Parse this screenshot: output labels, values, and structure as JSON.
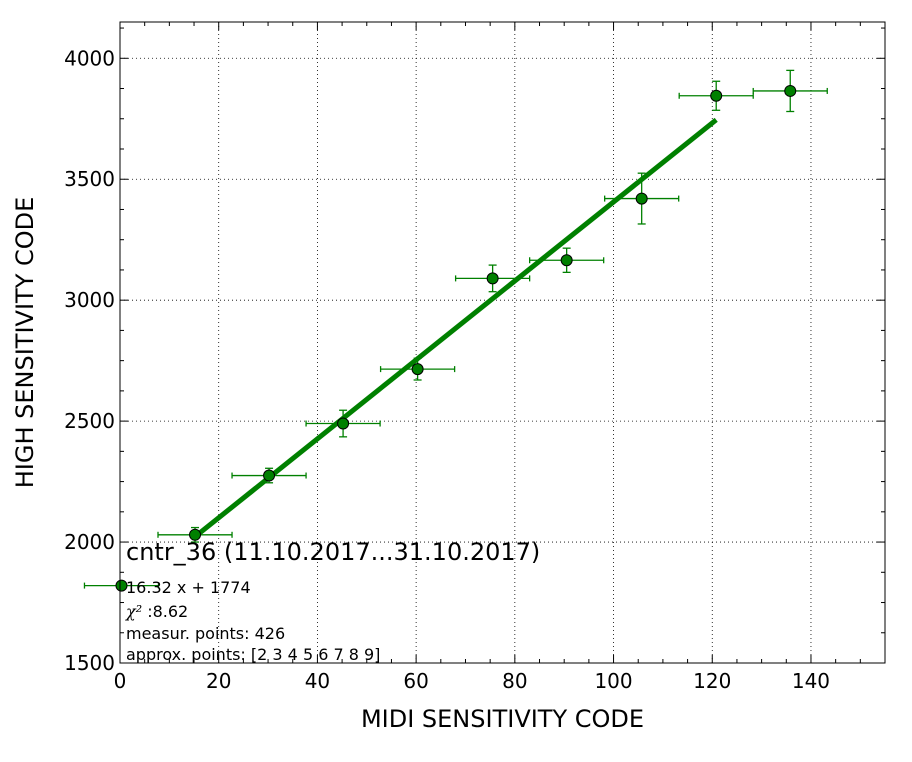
{
  "chart_data": {
    "type": "scatter",
    "xlabel": "MIDI SENSITIVITY CODE",
    "ylabel": "HIGH SENSITIVITY CODE",
    "xlim": [
      0,
      155
    ],
    "ylim": [
      1500,
      4150
    ],
    "x_ticks": [
      0,
      20,
      40,
      60,
      80,
      100,
      120,
      140
    ],
    "y_ticks": [
      1500,
      2000,
      2500,
      3000,
      3500,
      4000
    ],
    "x_tick_labels": [
      "0",
      "20",
      "40",
      "60",
      "80",
      "100",
      "120",
      "140"
    ],
    "y_tick_labels": [
      "1500",
      "2000",
      "2500",
      "3000",
      "3500",
      "4000"
    ],
    "grid": true,
    "colors": {
      "points": "#008000",
      "fit_line": "#008000",
      "marker_edge": "#000000"
    },
    "points": [
      {
        "x": 0.3,
        "y": 1820,
        "x_err": 7.5,
        "y_err": 0
      },
      {
        "x": 15.2,
        "y": 2030,
        "x_err": 7.5,
        "y_err": 30
      },
      {
        "x": 30.2,
        "y": 2275,
        "x_err": 7.5,
        "y_err": 30
      },
      {
        "x": 45.2,
        "y": 2490,
        "x_err": 7.5,
        "y_err": 55
      },
      {
        "x": 60.3,
        "y": 2715,
        "x_err": 7.5,
        "y_err": 45
      },
      {
        "x": 75.5,
        "y": 3090,
        "x_err": 7.5,
        "y_err": 55
      },
      {
        "x": 90.5,
        "y": 3165,
        "x_err": 7.5,
        "y_err": 50
      },
      {
        "x": 105.7,
        "y": 3420,
        "x_err": 7.5,
        "y_err": 105
      },
      {
        "x": 120.8,
        "y": 3845,
        "x_err": 7.5,
        "y_err": 60
      },
      {
        "x": 135.8,
        "y": 3865,
        "x_err": 7.5,
        "y_err": 85
      }
    ],
    "fit": {
      "slope": 16.32,
      "intercept": 1774,
      "x_range": [
        15.2,
        120.8
      ]
    },
    "annotation": {
      "title": "cntr_36 (11.10.2017...31.10.2017)",
      "equation": "16.32 x + 1774",
      "chi_symbol": "χ²",
      "chi_value": " :8.62",
      "measur_points": "measur. points: 426",
      "approx_points": "approx. points: [2 3 4 5 6 7 8 9]"
    }
  }
}
